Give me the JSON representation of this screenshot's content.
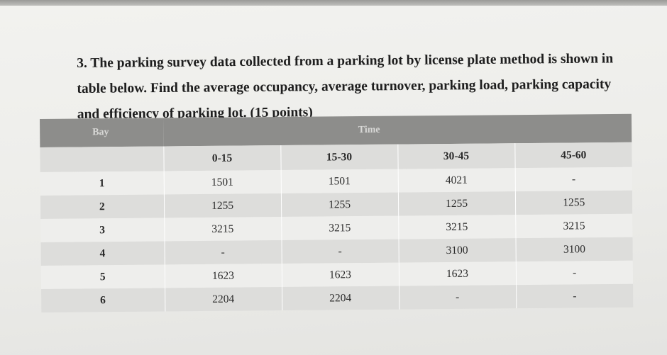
{
  "question": {
    "text": "3. The parking survey data collected from a parking lot by license plate method is shown in table below. Find the average occupancy, average turnover, parking load, parking capacity and efficiency of parking lot. (15 points)"
  },
  "table": {
    "header": {
      "bay": "Bay",
      "time": "Time"
    },
    "time_intervals": [
      "0-15",
      "15-30",
      "30-45",
      "45-60"
    ],
    "rows": [
      {
        "bay": "1",
        "values": [
          "1501",
          "1501",
          "4021",
          "-"
        ]
      },
      {
        "bay": "2",
        "values": [
          "1255",
          "1255",
          "1255",
          "1255"
        ]
      },
      {
        "bay": "3",
        "values": [
          "3215",
          "3215",
          "3215",
          "3215"
        ]
      },
      {
        "bay": "4",
        "values": [
          "-",
          "-",
          "3100",
          "3100"
        ]
      },
      {
        "bay": "5",
        "values": [
          "1623",
          "1623",
          "1623",
          "-"
        ]
      },
      {
        "bay": "6",
        "values": [
          "2204",
          "2204",
          "-",
          "-"
        ]
      }
    ]
  }
}
